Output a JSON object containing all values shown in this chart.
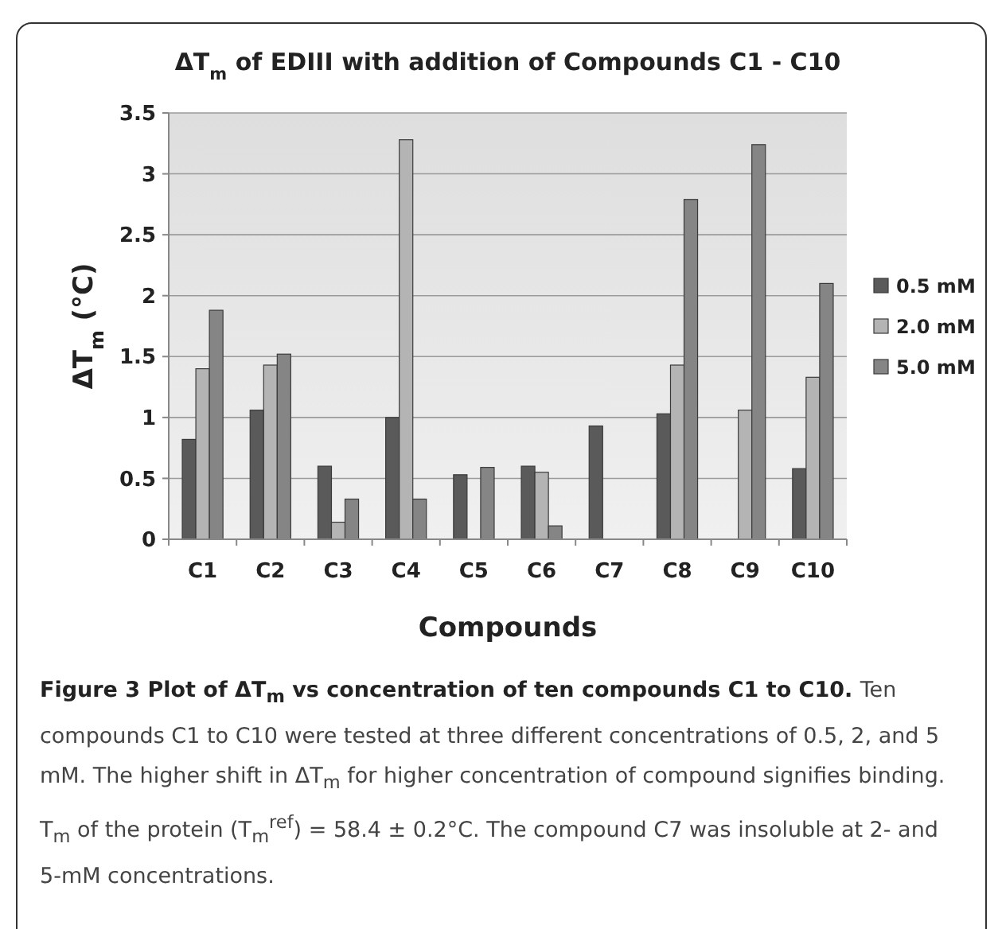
{
  "chart_data": {
    "type": "bar",
    "title": "ΔT$_{m}$ of EDIII with addition of Compounds C1 - C10",
    "xlabel": "Compounds",
    "ylabel": "ΔT$_{m}$ (°C)",
    "categories": [
      "C1",
      "C2",
      "C3",
      "C4",
      "C5",
      "C6",
      "C7",
      "C8",
      "C9",
      "C10"
    ],
    "series": [
      {
        "name": "0.5 mM",
        "color": "#5a5a5a",
        "values": [
          0.82,
          1.06,
          0.6,
          1.0,
          0.53,
          0.6,
          0.93,
          1.03,
          null,
          0.58
        ]
      },
      {
        "name": "2.0 mM",
        "color": "#b4b4b4",
        "values": [
          1.4,
          1.43,
          0.14,
          3.28,
          null,
          0.55,
          null,
          1.43,
          1.06,
          1.33
        ]
      },
      {
        "name": "5.0 mM",
        "color": "#858585",
        "values": [
          1.88,
          1.52,
          0.33,
          0.33,
          0.59,
          0.11,
          null,
          2.79,
          3.24,
          2.1
        ]
      }
    ],
    "ylim": [
      0,
      3.5
    ],
    "yticks": [
      0,
      0.5,
      1,
      1.5,
      2,
      2.5,
      3,
      3.5
    ],
    "grid": "y",
    "legend": "right",
    "annotations": [
      "Figure 3 Plot of ΔT$_{m}$ vs concentration of ten compounds C1 to C10.",
      "Ten compounds C1 to C10 were tested at three different concentrations of 0.5, 2, and 5 mM. The higher shift in ΔT$_{m}$ for higher concentration of compound signifies binding. T$_{m}$ of the protein (T$_{m}$$^{ref}$) = 58.4 ± 0.2°C. The compound C7 was insoluble at 2- and 5-mM concentrations."
    ]
  }
}
